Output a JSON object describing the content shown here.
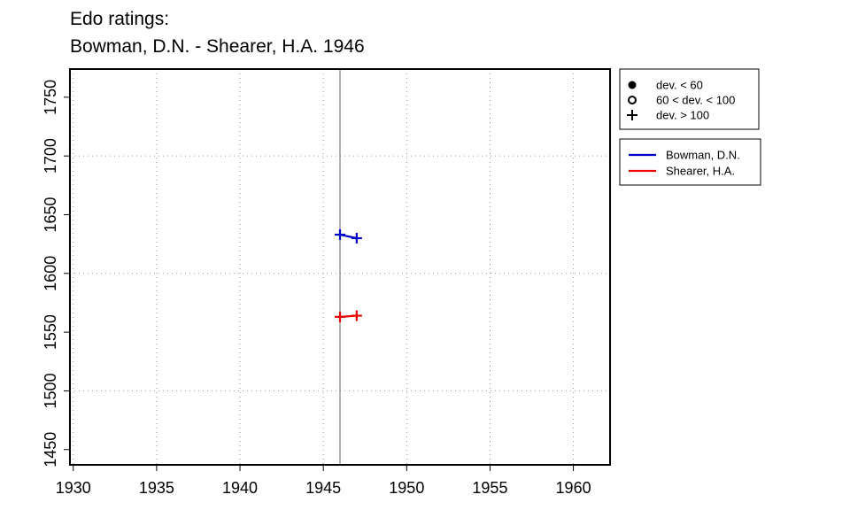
{
  "chart_data": {
    "type": "line",
    "title": "Edo ratings:",
    "subtitle": "Bowman, D.N. - Shearer, H.A. 1946",
    "xlabel": "",
    "ylabel": "",
    "xlim": [
      1929.8,
      1962.2
    ],
    "ylim": [
      1437,
      1774
    ],
    "x_ticks": [
      1930,
      1935,
      1940,
      1945,
      1950,
      1955,
      1960
    ],
    "y_ticks": [
      1450,
      1500,
      1550,
      1600,
      1650,
      1700,
      1750
    ],
    "grid": true,
    "grid_style": "dotted",
    "vline": 1946,
    "series": [
      {
        "name": "Bowman, D.N.",
        "color": "#0000cc",
        "x": [
          1946,
          1947
        ],
        "y": [
          1633,
          1630
        ],
        "marker": "plus"
      },
      {
        "name": "Shearer, H.A.",
        "color": "#ee0000",
        "x": [
          1946,
          1947
        ],
        "y": [
          1563,
          1564
        ],
        "marker": "plus"
      }
    ],
    "marker_legend": [
      {
        "symbol": "filled-circle",
        "label": "dev. < 60"
      },
      {
        "symbol": "open-circle",
        "label": "60 < dev. < 100"
      },
      {
        "symbol": "plus",
        "label": "dev. > 100"
      }
    ],
    "legend_position": "top-right, outside plot"
  }
}
